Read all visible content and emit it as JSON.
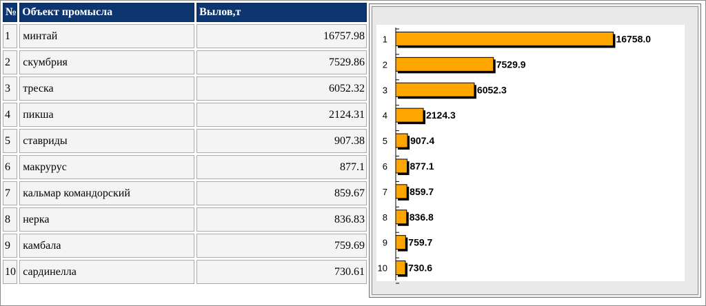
{
  "table": {
    "headers": [
      "№",
      "Объект промысла",
      "Вылов,т"
    ],
    "rows": [
      {
        "n": "1",
        "name": "минтай",
        "catch": "16757.98"
      },
      {
        "n": "2",
        "name": "скумбрия",
        "catch": "7529.86"
      },
      {
        "n": "3",
        "name": "треска",
        "catch": "6052.32"
      },
      {
        "n": "4",
        "name": "пикша",
        "catch": "2124.31"
      },
      {
        "n": "5",
        "name": "ставриды",
        "catch": "907.38"
      },
      {
        "n": "6",
        "name": "макрурус",
        "catch": "877.1"
      },
      {
        "n": "7",
        "name": "кальмар командорский",
        "catch": "859.67"
      },
      {
        "n": "8",
        "name": "нерка",
        "catch": "836.83"
      },
      {
        "n": "9",
        "name": "камбала",
        "catch": "759.69"
      },
      {
        "n": "10",
        "name": "сардинелла",
        "catch": "730.61"
      }
    ]
  },
  "chart_data": {
    "type": "bar",
    "orientation": "horizontal",
    "categories": [
      "1",
      "2",
      "3",
      "4",
      "5",
      "6",
      "7",
      "8",
      "9",
      "10"
    ],
    "values": [
      16758.0,
      7529.9,
      6052.3,
      2124.3,
      907.4,
      877.1,
      859.7,
      836.8,
      759.7,
      730.6
    ],
    "data_labels": [
      "16758.0",
      "7529.9",
      "6052.3",
      "2124.3",
      "907.4",
      "877.1",
      "859.7",
      "836.8",
      "759.7",
      "730.6"
    ],
    "xlim": [
      0,
      17000
    ],
    "grid": false,
    "bar_color": "#ffa500",
    "shadow_color": "#000000",
    "title": "",
    "xlabel": "",
    "ylabel": ""
  },
  "colors": {
    "header_bg": "#0d3670",
    "cell_bg": "#f4f4f4",
    "chart_panel_bg": "#e9e9e9",
    "plot_bg": "#ffffff"
  }
}
